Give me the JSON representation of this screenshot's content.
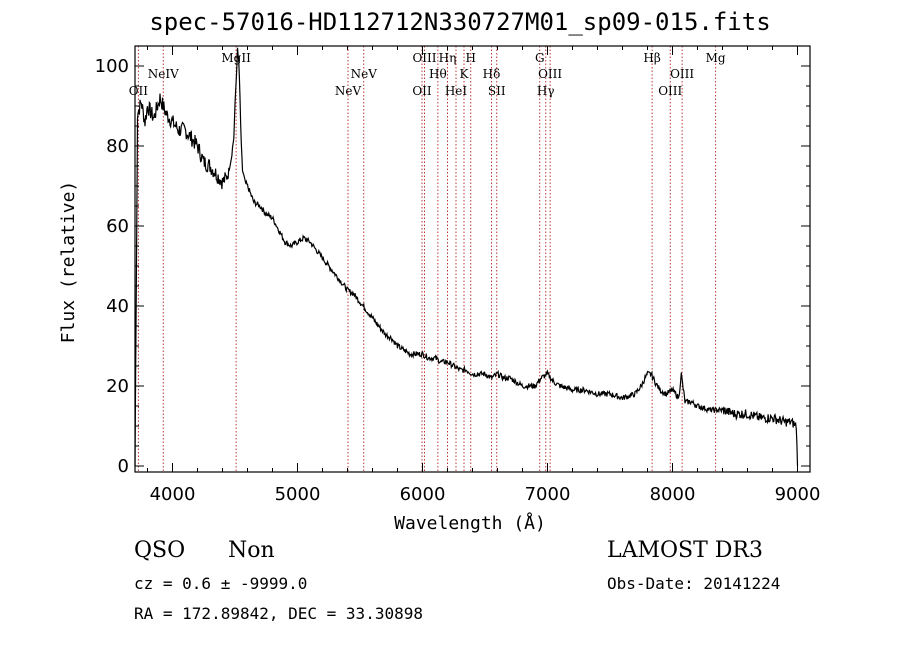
{
  "chart_data": {
    "type": "line",
    "title": "spec-57016-HD112712N330727M01_sp09-015.fits",
    "xlabel": "Wavelength (Å)",
    "ylabel": "Flux (relative)",
    "xlim": [
      3700,
      9100
    ],
    "ylim": [
      -1.5,
      105
    ],
    "xticks": [
      4000,
      5000,
      6000,
      7000,
      8000,
      9000
    ],
    "yticks": [
      0,
      20,
      40,
      60,
      80,
      100
    ],
    "grid": false,
    "series": [
      {
        "name": "spectrum",
        "x": [
          3700,
          3720,
          3750,
          3780,
          3800,
          3850,
          3900,
          3950,
          4000,
          4050,
          4100,
          4150,
          4200,
          4250,
          4300,
          4350,
          4400,
          4430,
          4450,
          4470,
          4490,
          4500,
          4510,
          4520,
          4530,
          4540,
          4550,
          4560,
          4580,
          4600,
          4650,
          4700,
          4750,
          4800,
          4850,
          4900,
          4950,
          5000,
          5050,
          5100,
          5150,
          5200,
          5250,
          5300,
          5350,
          5400,
          5450,
          5500,
          5550,
          5600,
          5650,
          5700,
          5750,
          5800,
          5850,
          5900,
          5950,
          6000,
          6050,
          6100,
          6150,
          6200,
          6250,
          6300,
          6350,
          6400,
          6450,
          6500,
          6550,
          6600,
          6650,
          6700,
          6750,
          6800,
          6850,
          6900,
          6950,
          7000,
          7050,
          7100,
          7200,
          7300,
          7400,
          7500,
          7600,
          7700,
          7750,
          7780,
          7800,
          7830,
          7860,
          7900,
          7950,
          8000,
          8050,
          8070,
          8100,
          8150,
          8200,
          8300,
          8400,
          8500,
          8600,
          8700,
          8800,
          8900,
          8950,
          8990,
          9000
        ],
        "y": [
          0,
          88,
          91,
          86,
          90,
          87,
          92,
          88,
          86,
          84,
          84,
          82,
          80,
          76,
          75,
          73,
          71,
          72,
          74,
          77,
          82,
          90,
          97,
          104,
          101,
          92,
          80,
          74,
          71,
          70,
          66,
          65,
          63,
          62,
          59,
          56,
          55,
          56,
          57,
          56,
          54,
          52,
          50,
          48,
          46,
          44,
          43,
          41,
          39,
          37,
          35,
          33,
          32,
          30,
          29,
          28,
          28,
          28,
          27,
          27,
          26,
          26,
          25,
          24,
          24,
          23,
          23,
          23,
          22,
          23,
          22,
          22,
          21,
          20,
          20,
          20,
          22,
          23,
          21,
          20,
          19,
          19,
          18,
          18,
          17,
          18,
          20,
          22,
          23,
          23,
          21,
          19,
          18,
          19,
          17,
          23,
          16,
          16,
          15,
          14,
          14,
          13,
          13,
          12,
          12,
          11,
          11,
          10,
          0
        ]
      }
    ],
    "line_markers": [
      {
        "label": "OII",
        "wavelength": 3727,
        "row": "mid"
      },
      {
        "label": "NeIV",
        "wavelength": 3926,
        "row": "top"
      },
      {
        "label": "MgII",
        "wavelength": 4509,
        "row": "upper"
      },
      {
        "label": "NeV",
        "wavelength": 5404,
        "row": "mid"
      },
      {
        "label": "NeV",
        "wavelength": 5530,
        "row": "top"
      },
      {
        "label": "OII",
        "wavelength": 5996,
        "row": "mid"
      },
      {
        "label": "OIII",
        "wavelength": 6016,
        "row": "upper"
      },
      {
        "label": "Hθ",
        "wavelength": 6123,
        "row": "top"
      },
      {
        "label": "Hη",
        "wavelength": 6200,
        "row": "upper"
      },
      {
        "label": "HeI",
        "wavelength": 6268,
        "row": "mid"
      },
      {
        "label": "K",
        "wavelength": 6332,
        "row": "top"
      },
      {
        "label": "H",
        "wavelength": 6386,
        "row": "upper"
      },
      {
        "label": "Hδ",
        "wavelength": 6552,
        "row": "top"
      },
      {
        "label": "SII",
        "wavelength": 6594,
        "row": "mid"
      },
      {
        "label": "G",
        "wavelength": 6938,
        "row": "upper"
      },
      {
        "label": "Hγ",
        "wavelength": 6986,
        "row": "mid"
      },
      {
        "label": "OIII",
        "wavelength": 7021,
        "row": "top"
      },
      {
        "label": "Hβ",
        "wavelength": 7837,
        "row": "upper"
      },
      {
        "label": "OIII",
        "wavelength": 7982,
        "row": "mid"
      },
      {
        "label": "OIII",
        "wavelength": 8077,
        "row": "top"
      },
      {
        "label": "Mg",
        "wavelength": 8345,
        "row": "upper"
      }
    ]
  },
  "info": {
    "class_label": "QSO",
    "subclass_label": "Non",
    "survey_label": "LAMOST DR3",
    "cz_text": "cz = 0.6 ± -9999.0",
    "obs_date_text": "Obs-Date: 20141224",
    "radec_text": "RA = 172.89842, DEC =  33.30898"
  },
  "colors": {
    "spectrum": "#000000",
    "marker_line": "#b22222",
    "axis": "#000000"
  }
}
